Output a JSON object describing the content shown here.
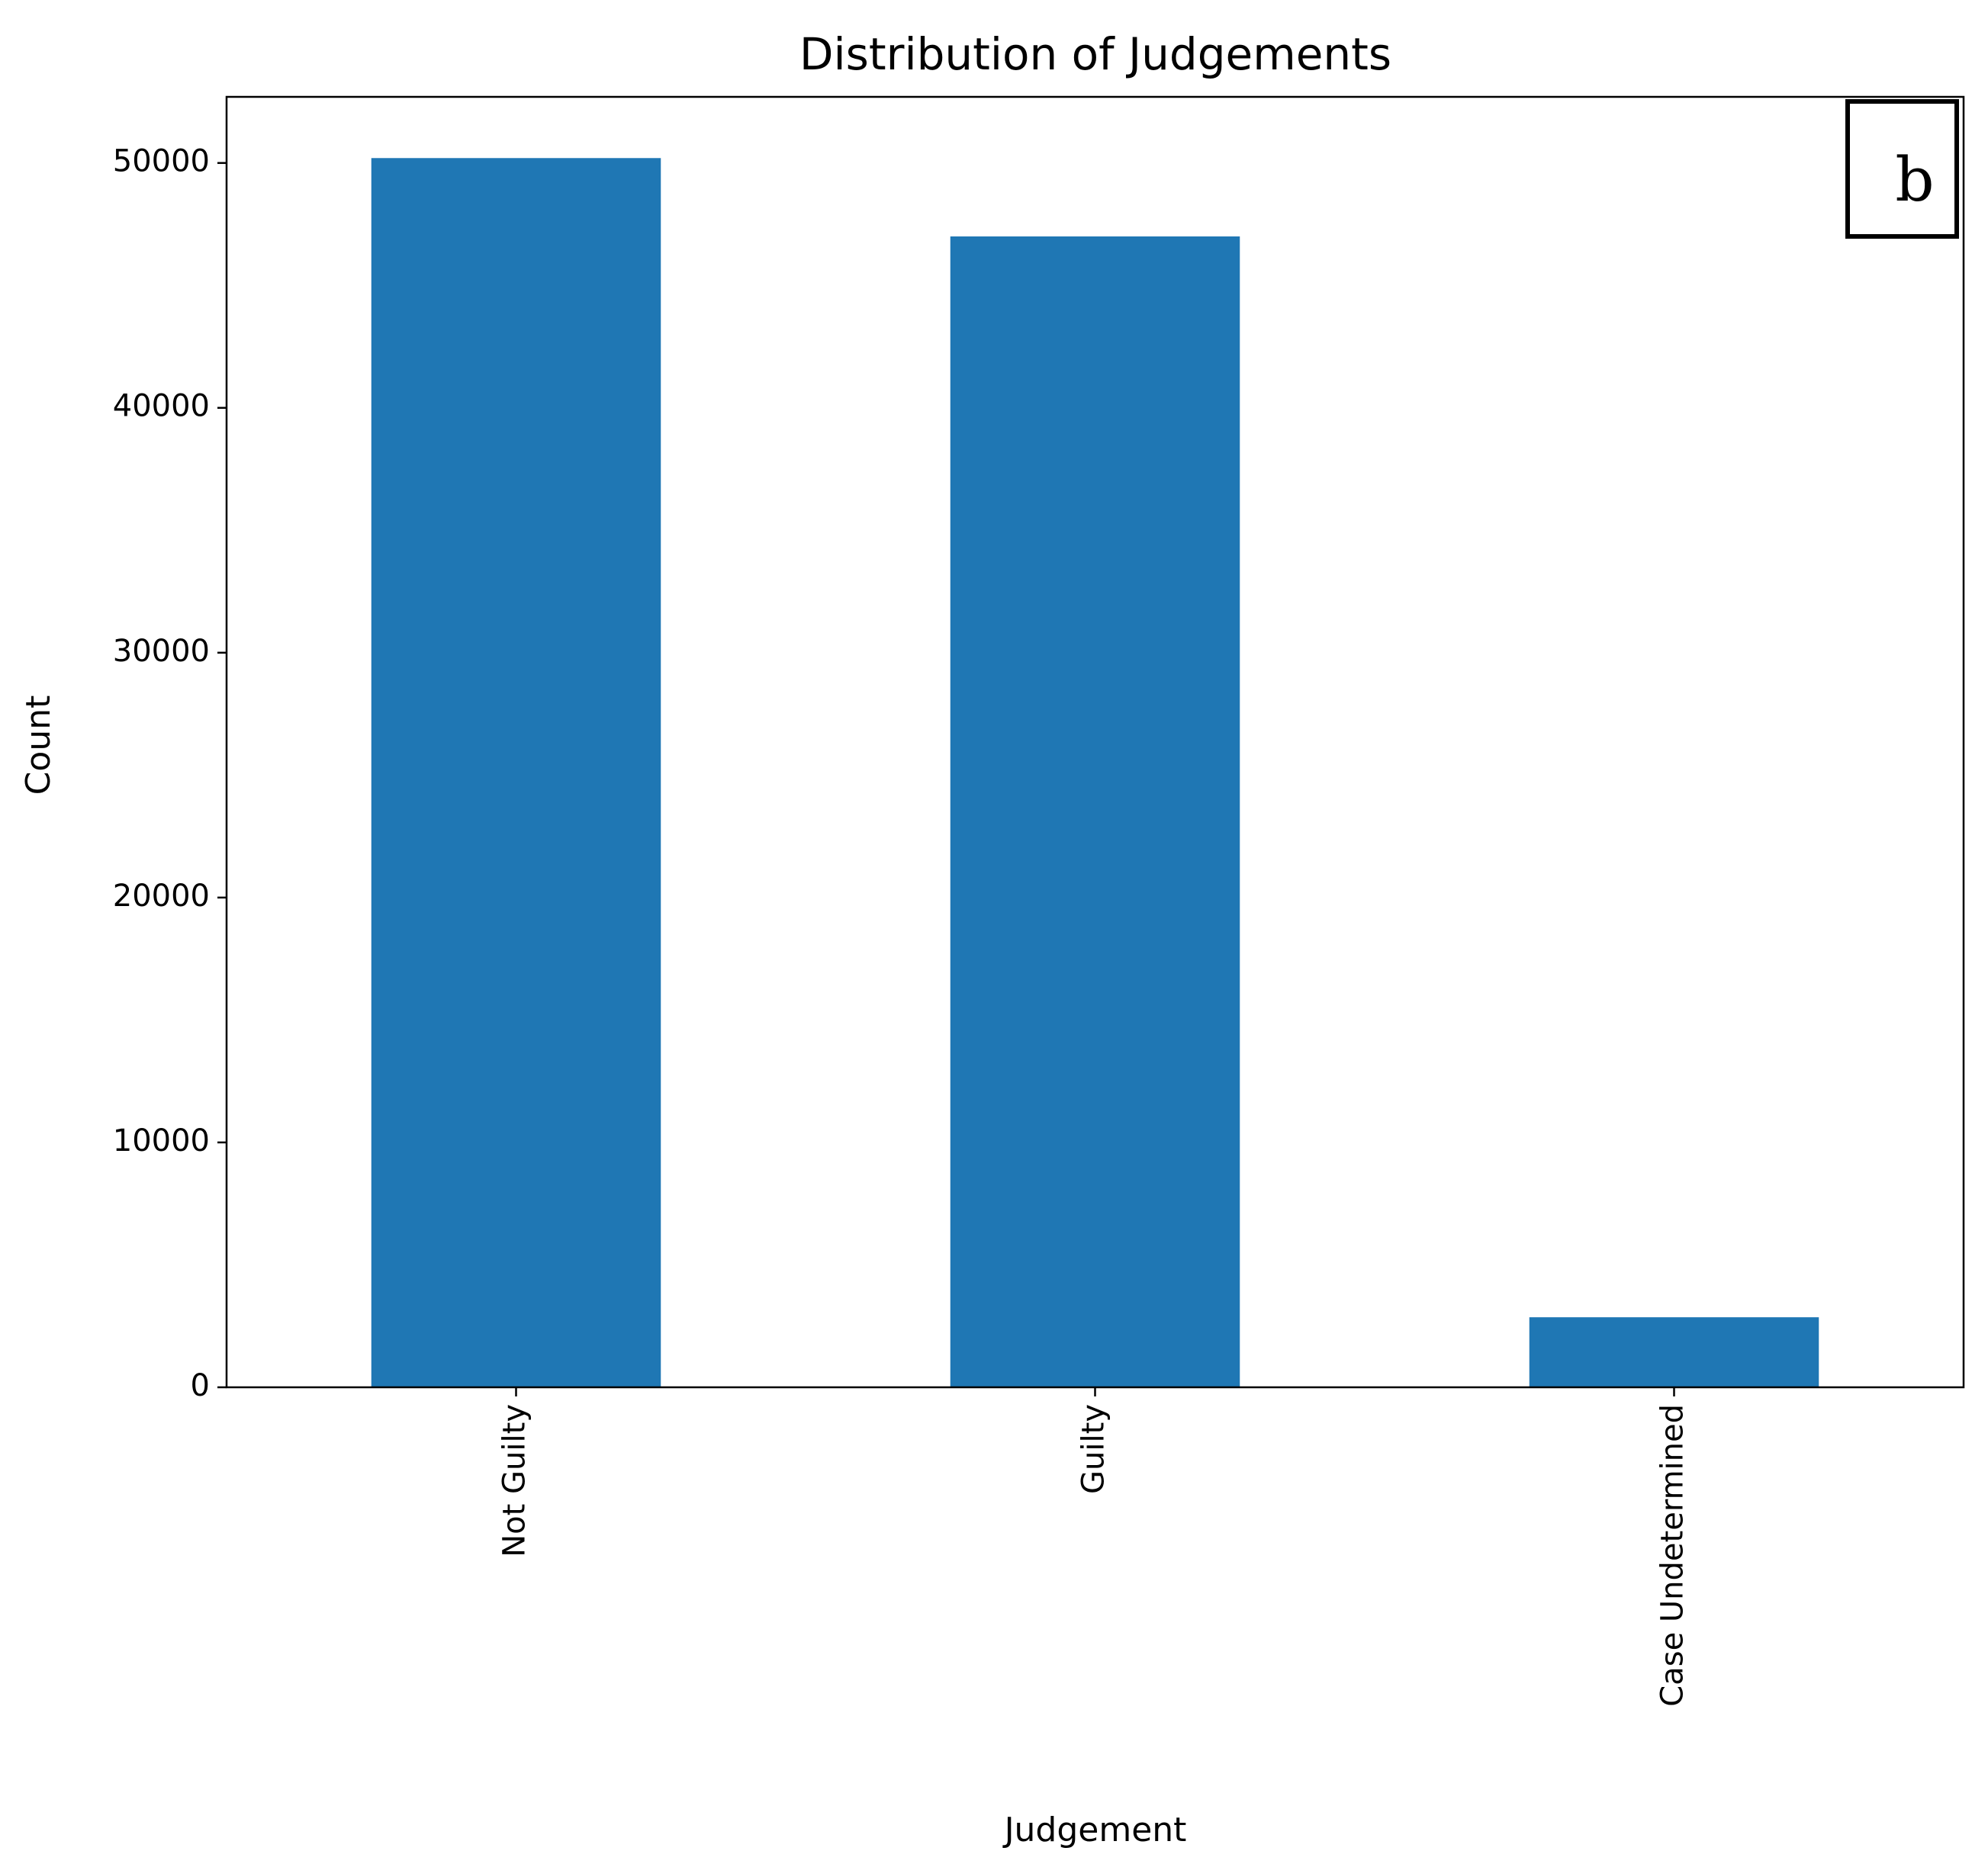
{
  "chart_data": {
    "type": "bar",
    "title": "Distribution of Judgements",
    "x_label": "Judgement",
    "y_label": "Count",
    "categories": [
      "Not Guilty",
      "Guilty",
      "Case Undetermined"
    ],
    "values": [
      50200,
      47000,
      2860
    ],
    "color": "#1f77b4",
    "ylim": [
      0,
      52700
    ],
    "yticks": [
      0,
      10000,
      20000,
      30000,
      40000,
      50000
    ],
    "annotation": "b"
  }
}
